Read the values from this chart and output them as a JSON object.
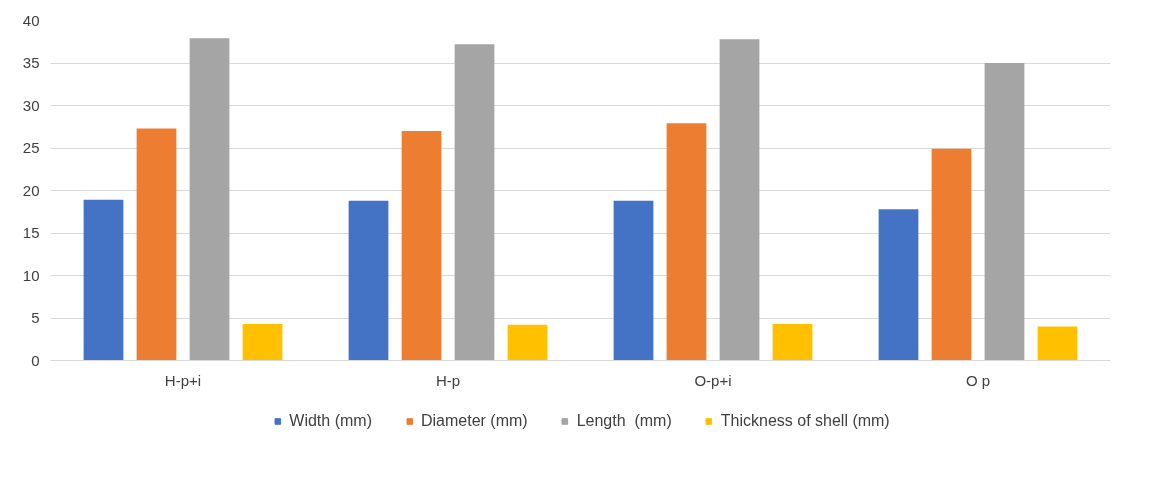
{
  "chart_data": {
    "type": "bar",
    "categories": [
      "H-p+i",
      "H-p",
      "O-p+i",
      "O p"
    ],
    "series": [
      {
        "name": "Width (mm)",
        "color": "#4472c4",
        "values": [
          18.9,
          18.8,
          18.8,
          17.8
        ]
      },
      {
        "name": "Diameter (mm)",
        "color": "#ed7d31",
        "values": [
          27.3,
          27.0,
          27.9,
          24.9
        ]
      },
      {
        "name": "Length  (mm)",
        "color": "#a5a5a5",
        "values": [
          37.9,
          37.2,
          37.8,
          35.0
        ]
      },
      {
        "name": "Thickness of shell (mm)",
        "color": "#ffc000",
        "values": [
          4.3,
          4.2,
          4.3,
          4.0
        ]
      }
    ],
    "ylim": [
      0,
      40
    ],
    "yticks": [
      0,
      5,
      10,
      15,
      20,
      25,
      30,
      35,
      40
    ],
    "grid": "y",
    "legend": "bottom"
  }
}
